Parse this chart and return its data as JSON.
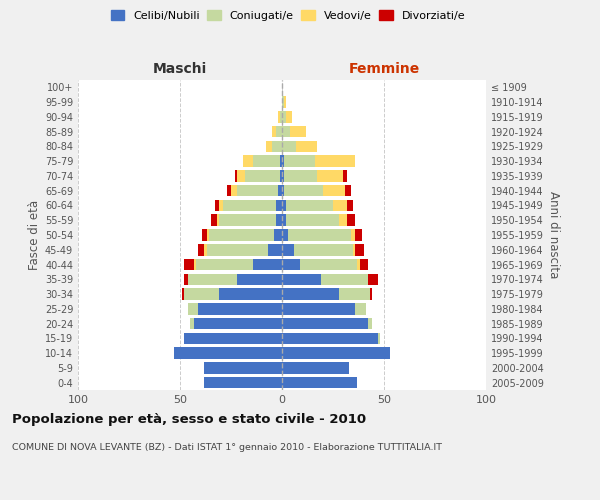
{
  "age_groups": [
    "0-4",
    "5-9",
    "10-14",
    "15-19",
    "20-24",
    "25-29",
    "30-34",
    "35-39",
    "40-44",
    "45-49",
    "50-54",
    "55-59",
    "60-64",
    "65-69",
    "70-74",
    "75-79",
    "80-84",
    "85-89",
    "90-94",
    "95-99",
    "100+"
  ],
  "birth_years": [
    "2005-2009",
    "2000-2004",
    "1995-1999",
    "1990-1994",
    "1985-1989",
    "1980-1984",
    "1975-1979",
    "1970-1974",
    "1965-1969",
    "1960-1964",
    "1955-1959",
    "1950-1954",
    "1945-1949",
    "1940-1944",
    "1935-1939",
    "1930-1934",
    "1925-1929",
    "1920-1924",
    "1915-1919",
    "1910-1914",
    "≤ 1909"
  ],
  "male": {
    "celibi": [
      38,
      38,
      53,
      48,
      43,
      41,
      31,
      22,
      14,
      7,
      4,
      3,
      3,
      2,
      1,
      1,
      0,
      0,
      0,
      0,
      0
    ],
    "coniugati": [
      0,
      0,
      0,
      0,
      2,
      5,
      17,
      24,
      28,
      30,
      32,
      28,
      26,
      20,
      17,
      13,
      5,
      3,
      1,
      0,
      0
    ],
    "vedovi": [
      0,
      0,
      0,
      0,
      0,
      0,
      0,
      0,
      1,
      1,
      1,
      1,
      2,
      3,
      4,
      5,
      3,
      2,
      1,
      0,
      0
    ],
    "divorziati": [
      0,
      0,
      0,
      0,
      0,
      0,
      1,
      2,
      5,
      3,
      2,
      3,
      2,
      2,
      1,
      0,
      0,
      0,
      0,
      0,
      0
    ]
  },
  "female": {
    "nubili": [
      37,
      33,
      53,
      47,
      42,
      36,
      28,
      19,
      9,
      6,
      3,
      2,
      2,
      1,
      1,
      1,
      0,
      0,
      0,
      0,
      0
    ],
    "coniugate": [
      0,
      0,
      0,
      1,
      2,
      5,
      15,
      23,
      28,
      29,
      31,
      26,
      23,
      19,
      16,
      15,
      7,
      4,
      2,
      1,
      0
    ],
    "vedove": [
      0,
      0,
      0,
      0,
      0,
      0,
      0,
      0,
      1,
      1,
      2,
      4,
      7,
      11,
      13,
      20,
      10,
      8,
      3,
      1,
      0
    ],
    "divorziate": [
      0,
      0,
      0,
      0,
      0,
      0,
      1,
      5,
      4,
      4,
      3,
      4,
      3,
      3,
      2,
      0,
      0,
      0,
      0,
      0,
      0
    ]
  },
  "colors": {
    "celibi": "#4472C4",
    "coniugati": "#c5d9a0",
    "vedovi": "#ffd966",
    "divorziati": "#cc0000"
  },
  "title": "Popolazione per età, sesso e stato civile - 2010",
  "subtitle": "COMUNE DI NOVA LEVANTE (BZ) - Dati ISTAT 1° gennaio 2010 - Elaborazione TUTTITALIA.IT",
  "xlabel_left": "Maschi",
  "xlabel_right": "Femmine",
  "ylabel_left": "Fasce di età",
  "ylabel_right": "Anni di nascita",
  "xlim": 100,
  "bg_color": "#f0f0f0",
  "plot_bg": "#ffffff"
}
